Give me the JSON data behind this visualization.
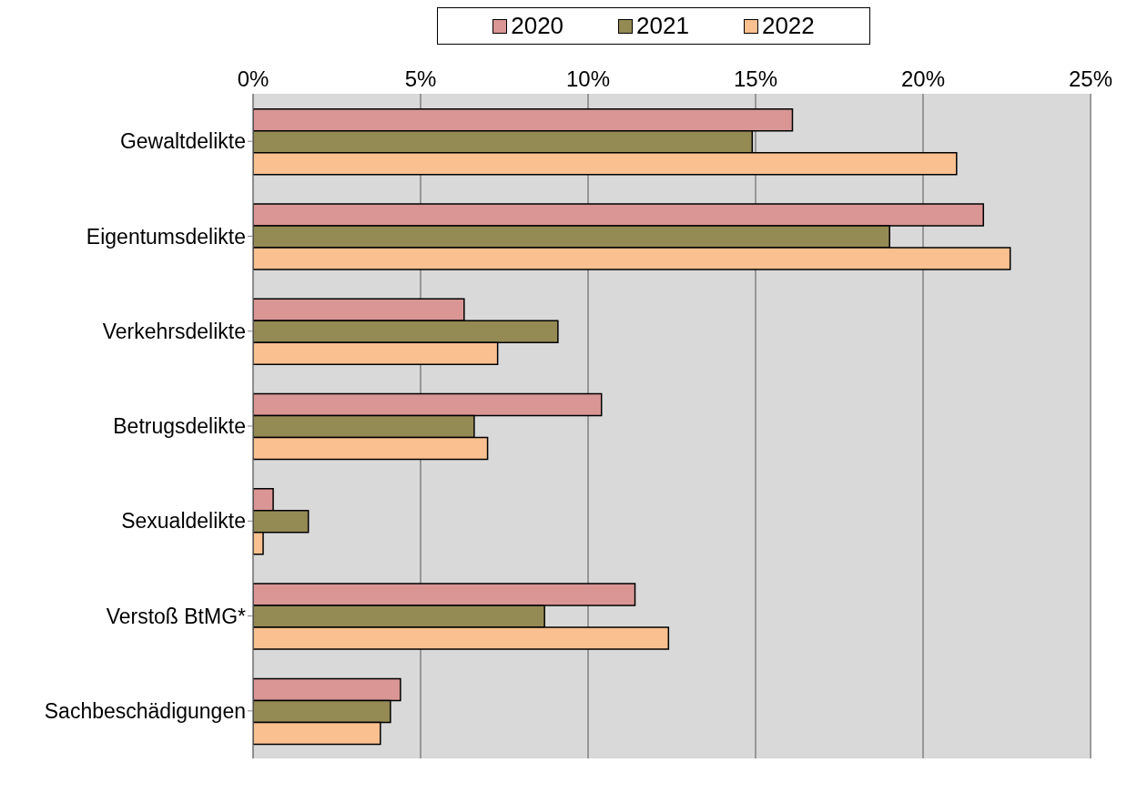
{
  "chart_data": {
    "type": "bar",
    "orientation": "horizontal",
    "categories": [
      "Gewaltdelikte",
      "Eigentumsdelikte",
      "Verkehrsdelikte",
      "Betrugsdelikte",
      "Sexualdelikte",
      "Verstoß BtMG*",
      "Sachbeschädigungen"
    ],
    "series": [
      {
        "name": "2020",
        "color": "#d99694",
        "values": [
          16.1,
          21.8,
          6.3,
          10.4,
          0.6,
          11.4,
          4.4
        ]
      },
      {
        "name": "2021",
        "color": "#948a54",
        "values": [
          14.9,
          19.0,
          9.1,
          6.6,
          1.65,
          8.7,
          4.1
        ]
      },
      {
        "name": "2022",
        "color": "#fac090",
        "values": [
          21.0,
          22.6,
          7.3,
          7.0,
          0.3,
          12.4,
          3.8
        ]
      }
    ],
    "xlim": [
      0,
      25
    ],
    "xticks": [
      {
        "value": 0,
        "label": "0%"
      },
      {
        "value": 5,
        "label": "5%"
      },
      {
        "value": 10,
        "label": "10%"
      },
      {
        "value": 15,
        "label": "15%"
      },
      {
        "value": 20,
        "label": "20%"
      },
      {
        "value": 25,
        "label": "25%"
      }
    ],
    "grid": "x",
    "legend": "top"
  }
}
